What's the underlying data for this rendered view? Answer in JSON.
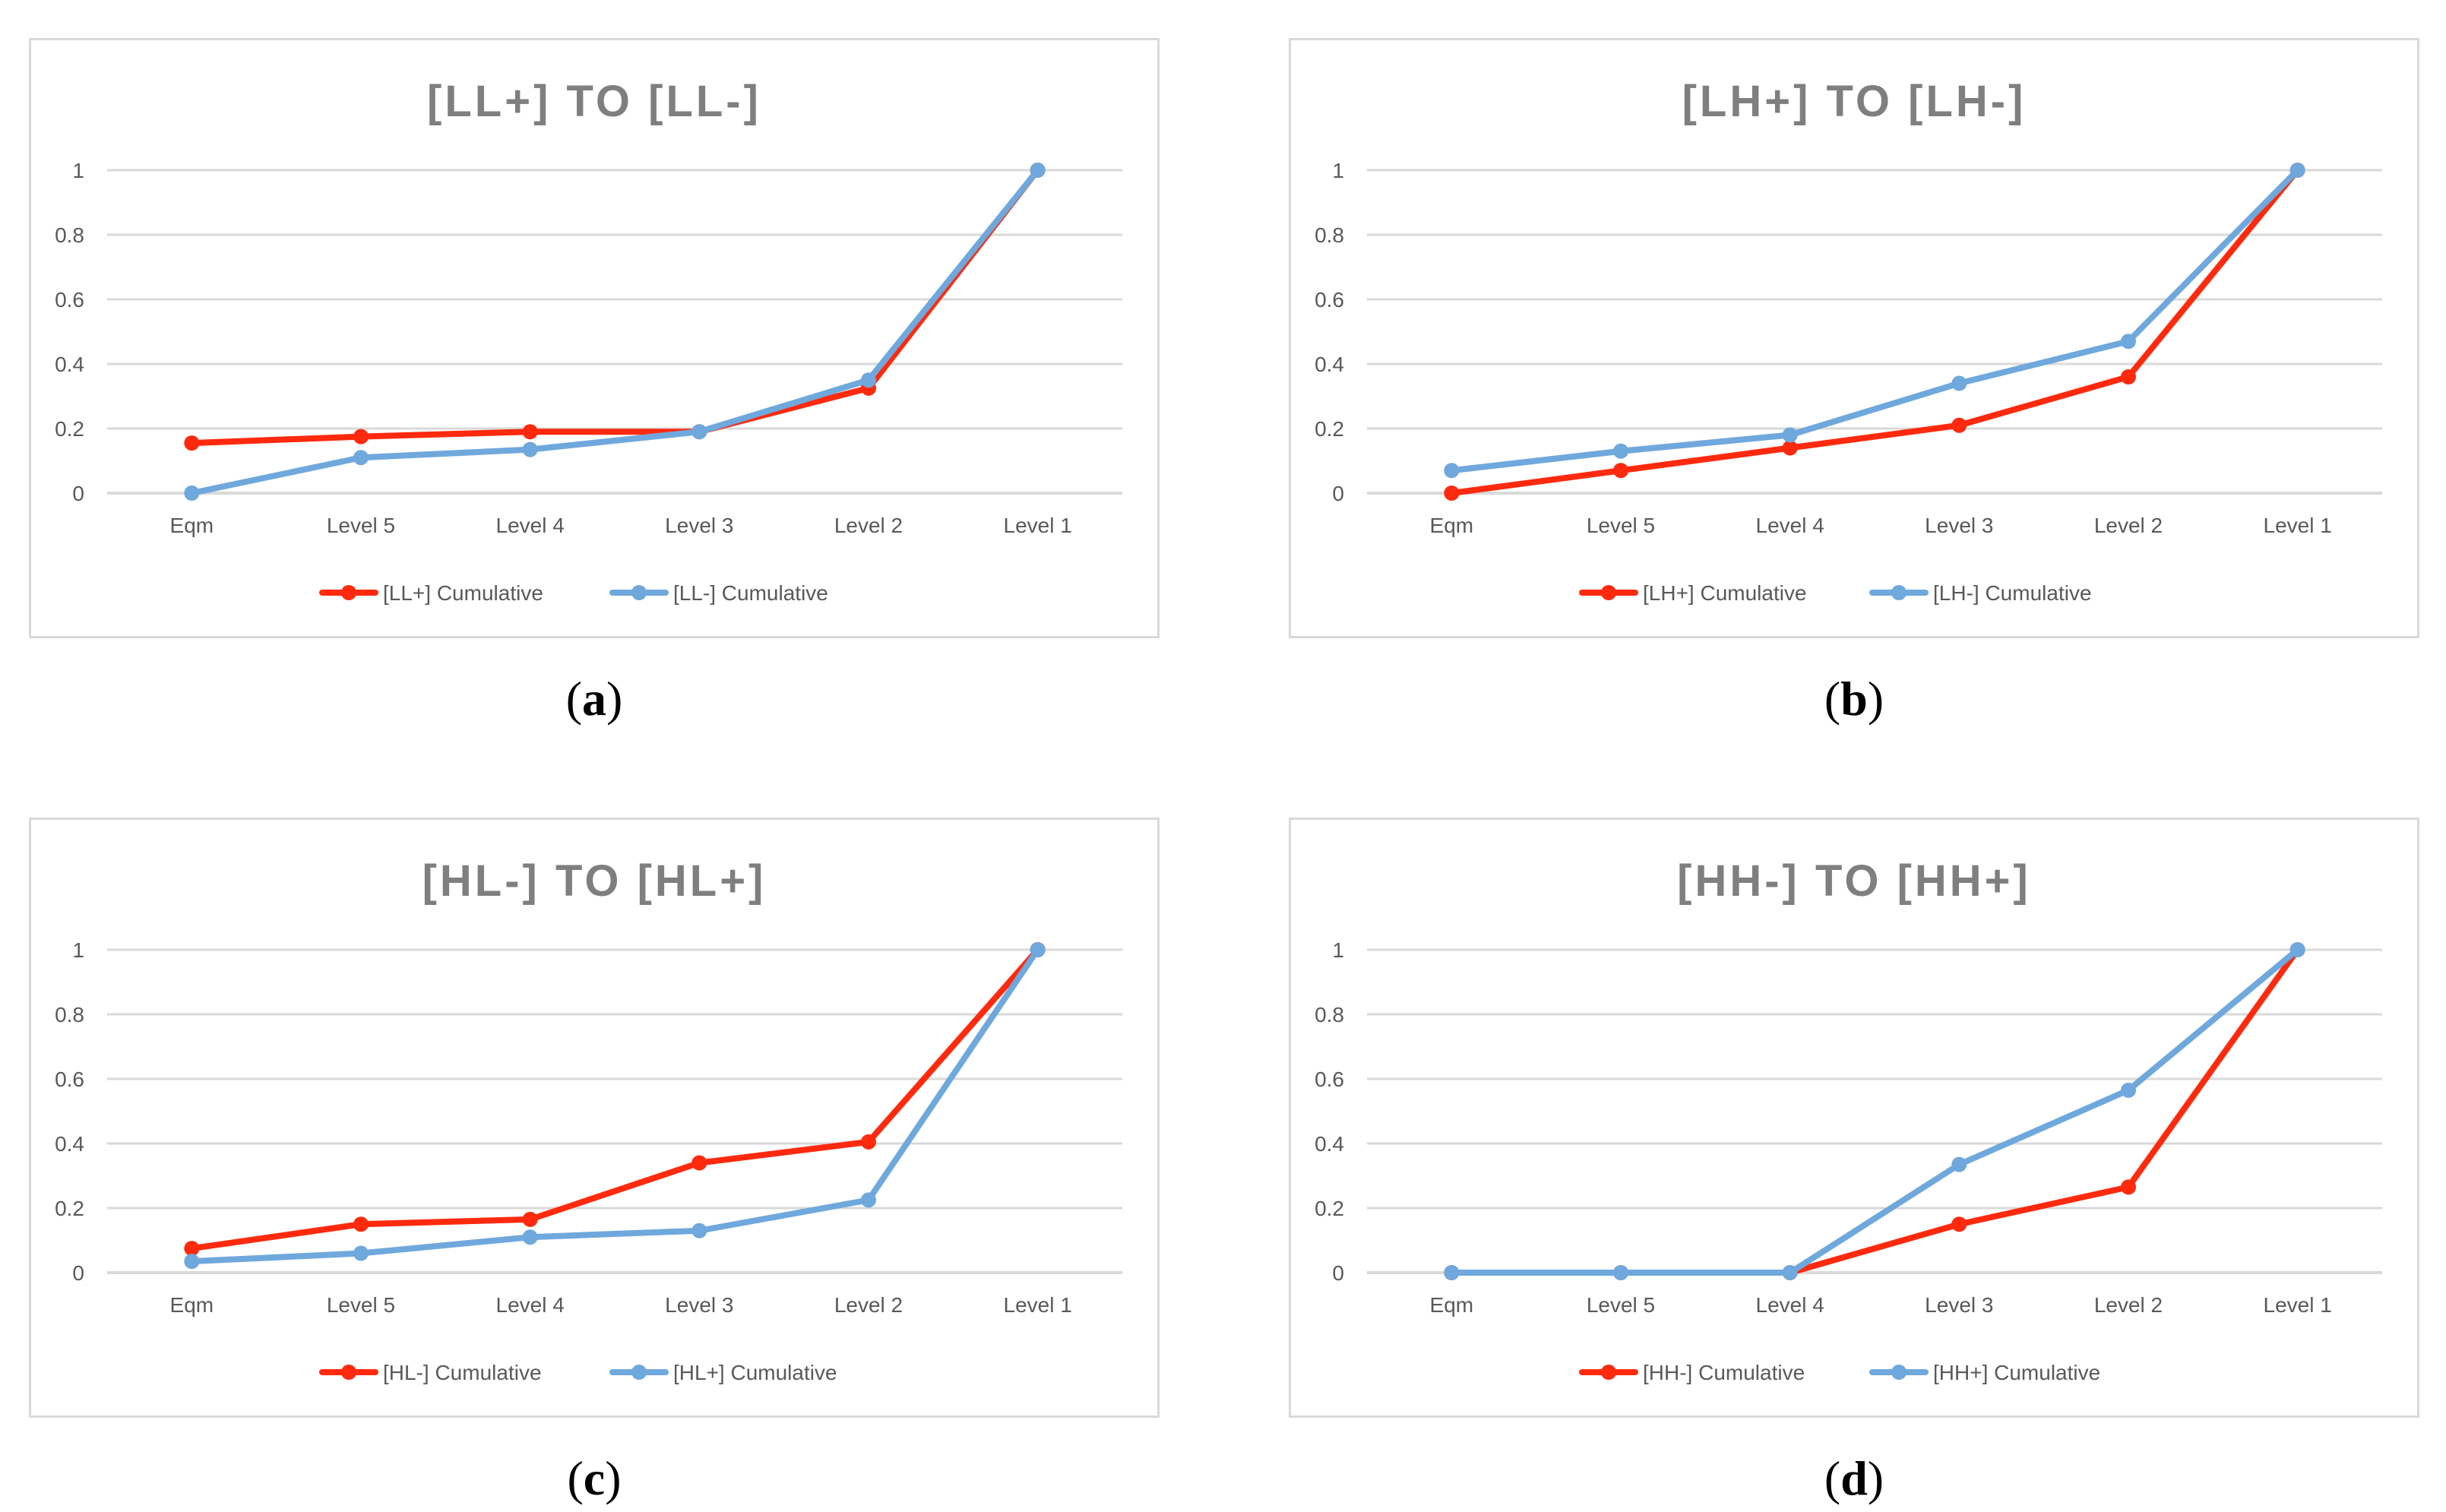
{
  "colors": {
    "series_red": "#ff2a0e",
    "series_blue": "#6fa8dc",
    "grid": "#d9d9d9",
    "axis_text": "#595959",
    "title": "#7f7f7f"
  },
  "chart_data": [
    {
      "type": "line",
      "title": "[LL+] TO [LL-]",
      "caption": "a",
      "categories": [
        "Eqm",
        "Level 5",
        "Level 4",
        "Level 3",
        "Level 2",
        "Level 1"
      ],
      "yticks": [
        "0",
        "0.2",
        "0.4",
        "0.6",
        "0.8",
        "1"
      ],
      "ylim": [
        0,
        1
      ],
      "series": [
        {
          "name": "[LL+] Cumulative",
          "values": [
            0.155,
            0.175,
            0.19,
            0.19,
            0.325,
            1.0
          ]
        },
        {
          "name": "[LL-] Cumulative",
          "values": [
            0.0,
            0.11,
            0.135,
            0.19,
            0.35,
            1.0
          ]
        }
      ]
    },
    {
      "type": "line",
      "title": "[LH+] TO [LH-]",
      "caption": "b",
      "categories": [
        "Eqm",
        "Level 5",
        "Level 4",
        "Level 3",
        "Level 2",
        "Level 1"
      ],
      "yticks": [
        "0",
        "0.2",
        "0.4",
        "0.6",
        "0.8",
        "1"
      ],
      "ylim": [
        0,
        1
      ],
      "series": [
        {
          "name": "[LH+] Cumulative",
          "values": [
            0.0,
            0.07,
            0.14,
            0.21,
            0.36,
            1.0
          ]
        },
        {
          "name": "[LH-] Cumulative",
          "values": [
            0.07,
            0.13,
            0.18,
            0.34,
            0.47,
            1.0
          ]
        }
      ]
    },
    {
      "type": "line",
      "title": "[HL-] TO [HL+]",
      "caption": "c",
      "categories": [
        "Eqm",
        "Level 5",
        "Level 4",
        "Level 3",
        "Level 2",
        "Level 1"
      ],
      "yticks": [
        "0",
        "0.2",
        "0.4",
        "0.6",
        "0.8",
        "1"
      ],
      "ylim": [
        0,
        1
      ],
      "series": [
        {
          "name": "[HL-] Cumulative",
          "values": [
            0.075,
            0.15,
            0.165,
            0.34,
            0.405,
            1.0
          ]
        },
        {
          "name": "[HL+] Cumulative",
          "values": [
            0.035,
            0.06,
            0.11,
            0.13,
            0.225,
            1.0
          ]
        }
      ]
    },
    {
      "type": "line",
      "title": "[HH-] TO [HH+]",
      "caption": "d",
      "categories": [
        "Eqm",
        "Level 5",
        "Level 4",
        "Level 3",
        "Level 2",
        "Level 1"
      ],
      "yticks": [
        "0",
        "0.2",
        "0.4",
        "0.6",
        "0.8",
        "1"
      ],
      "ylim": [
        0,
        1
      ],
      "series": [
        {
          "name": "[HH-] Cumulative",
          "values": [
            0.0,
            0.0,
            0.0,
            0.15,
            0.265,
            1.0
          ]
        },
        {
          "name": "[HH+] Cumulative",
          "values": [
            0.0,
            0.0,
            0.0,
            0.335,
            0.565,
            1.0
          ]
        }
      ]
    }
  ]
}
